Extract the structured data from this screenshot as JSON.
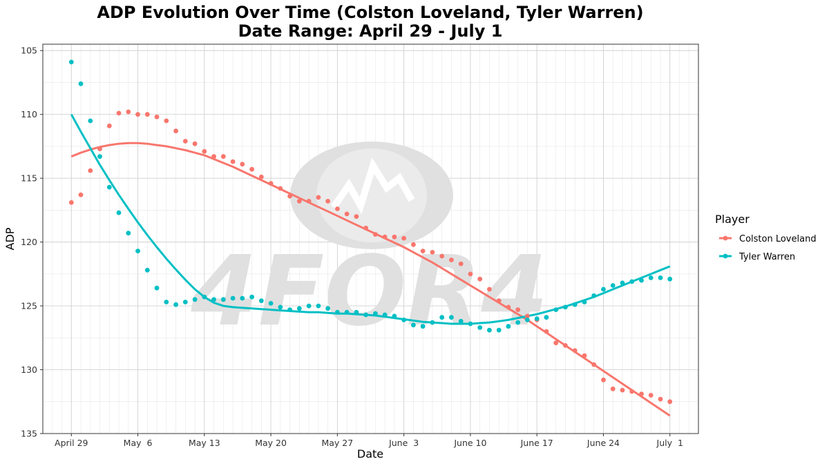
{
  "chart_data": {
    "type": "scatter",
    "title": "ADP Evolution Over Time (Colston Loveland, Tyler Warren)",
    "subtitle": "Date Range: April 29 - July  1",
    "xlabel": "Date",
    "ylabel": "ADP",
    "x_ticks": [
      "April 29",
      "May  6",
      "May 13",
      "May 20",
      "May 27",
      "June  3",
      "June 10",
      "June 17",
      "June 24",
      "July  1"
    ],
    "x_range": [
      "2025-04-26",
      "2025-07-04"
    ],
    "ylim": [
      135,
      104.5
    ],
    "y_reversed": true,
    "y_ticks": [
      105,
      110,
      115,
      120,
      125,
      130,
      135
    ],
    "grid": true,
    "legend": {
      "title": "Player",
      "position": "right"
    },
    "watermark": "4FOR4",
    "x": [
      "2025-04-29",
      "2025-04-30",
      "2025-05-01",
      "2025-05-02",
      "2025-05-03",
      "2025-05-04",
      "2025-05-05",
      "2025-05-06",
      "2025-05-07",
      "2025-05-08",
      "2025-05-09",
      "2025-05-10",
      "2025-05-11",
      "2025-05-12",
      "2025-05-13",
      "2025-05-14",
      "2025-05-15",
      "2025-05-16",
      "2025-05-17",
      "2025-05-18",
      "2025-05-19",
      "2025-05-20",
      "2025-05-21",
      "2025-05-22",
      "2025-05-23",
      "2025-05-24",
      "2025-05-25",
      "2025-05-26",
      "2025-05-27",
      "2025-05-28",
      "2025-05-29",
      "2025-05-30",
      "2025-05-31",
      "2025-06-01",
      "2025-06-02",
      "2025-06-03",
      "2025-06-04",
      "2025-06-05",
      "2025-06-06",
      "2025-06-07",
      "2025-06-08",
      "2025-06-09",
      "2025-06-10",
      "2025-06-11",
      "2025-06-12",
      "2025-06-13",
      "2025-06-14",
      "2025-06-15",
      "2025-06-16",
      "2025-06-17",
      "2025-06-18",
      "2025-06-19",
      "2025-06-20",
      "2025-06-21",
      "2025-06-22",
      "2025-06-23",
      "2025-06-24",
      "2025-06-25",
      "2025-06-26",
      "2025-06-27",
      "2025-06-28",
      "2025-06-29",
      "2025-06-30",
      "2025-07-01"
    ],
    "series": [
      {
        "name": "Colston Loveland",
        "color": "#F8766D",
        "values": [
          116.9,
          116.3,
          114.4,
          112.7,
          110.9,
          109.9,
          109.8,
          110.0,
          110.0,
          110.2,
          110.5,
          111.3,
          112.1,
          112.3,
          112.9,
          113.3,
          113.3,
          113.7,
          113.9,
          114.3,
          114.9,
          115.4,
          115.8,
          116.4,
          116.8,
          116.8,
          116.5,
          116.8,
          117.4,
          117.8,
          118.0,
          118.9,
          119.4,
          119.6,
          119.6,
          119.7,
          120.2,
          120.7,
          120.8,
          121.1,
          121.4,
          121.7,
          122.5,
          122.9,
          123.7,
          124.6,
          125.1,
          125.3,
          125.8,
          126.1,
          127.0,
          127.9,
          128.1,
          128.5,
          128.9,
          129.6,
          130.8,
          131.5,
          131.6,
          131.7,
          131.9,
          132.0,
          132.3,
          132.5
        ],
        "trend": [
          113.3,
          113.0,
          112.75,
          112.55,
          112.4,
          112.3,
          112.25,
          112.25,
          112.3,
          112.4,
          112.5,
          112.65,
          112.8,
          113.0,
          113.2,
          113.5,
          113.8,
          114.1,
          114.45,
          114.8,
          115.15,
          115.5,
          115.85,
          116.2,
          116.55,
          116.9,
          117.25,
          117.6,
          117.95,
          118.3,
          118.65,
          119.0,
          119.35,
          119.7,
          120.05,
          120.4,
          120.8,
          121.2,
          121.6,
          122.05,
          122.5,
          122.95,
          123.4,
          123.85,
          124.3,
          124.75,
          125.2,
          125.65,
          126.1,
          126.6,
          127.1,
          127.6,
          128.1,
          128.6,
          129.1,
          129.6,
          130.1,
          130.6,
          131.1,
          131.6,
          132.1,
          132.6,
          133.1,
          133.6
        ]
      },
      {
        "name": "Tyler Warren",
        "color": "#00BFC4",
        "values": [
          105.9,
          107.6,
          110.5,
          113.3,
          115.7,
          117.7,
          119.3,
          120.7,
          122.2,
          123.6,
          124.7,
          124.9,
          124.7,
          124.5,
          124.3,
          124.5,
          124.5,
          124.4,
          124.4,
          124.3,
          124.6,
          124.8,
          125.1,
          125.3,
          125.2,
          125.0,
          125.0,
          125.2,
          125.5,
          125.5,
          125.5,
          125.7,
          125.6,
          125.7,
          125.8,
          126.1,
          126.5,
          126.6,
          126.3,
          125.9,
          125.9,
          126.2,
          126.4,
          126.7,
          126.9,
          126.9,
          126.6,
          126.3,
          126.1,
          126.0,
          125.9,
          125.3,
          125.1,
          124.9,
          124.7,
          124.2,
          123.7,
          123.4,
          123.2,
          123.1,
          123.0,
          122.8,
          122.8,
          122.9
        ],
        "trend": [
          110.0,
          111.35,
          112.65,
          113.95,
          115.15,
          116.3,
          117.4,
          118.45,
          119.45,
          120.4,
          121.3,
          122.15,
          122.95,
          123.7,
          124.3,
          124.75,
          125.0,
          125.1,
          125.15,
          125.2,
          125.25,
          125.3,
          125.35,
          125.4,
          125.45,
          125.5,
          125.5,
          125.55,
          125.6,
          125.6,
          125.65,
          125.7,
          125.75,
          125.85,
          125.95,
          126.05,
          126.15,
          126.25,
          126.3,
          126.35,
          126.4,
          126.4,
          126.4,
          126.35,
          126.3,
          126.2,
          126.1,
          125.95,
          125.8,
          125.65,
          125.45,
          125.25,
          125.05,
          124.8,
          124.55,
          124.3,
          124.0,
          123.7,
          123.4,
          123.1,
          122.8,
          122.5,
          122.2,
          121.9
        ]
      }
    ]
  }
}
